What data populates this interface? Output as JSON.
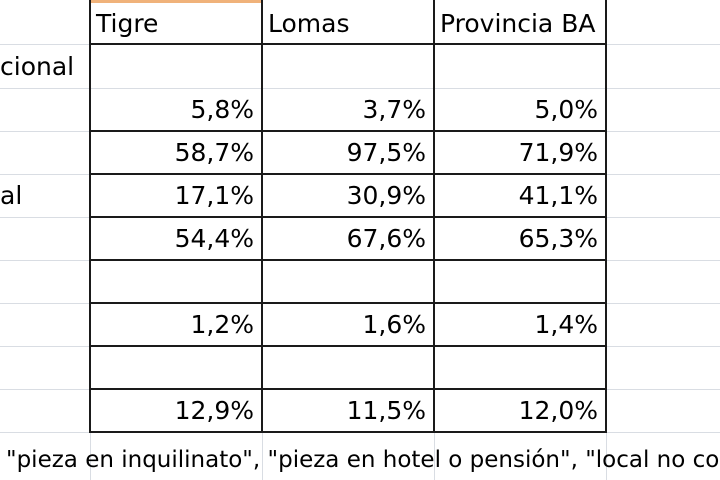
{
  "columns": [
    "Tigre",
    "Lomas",
    "Provincia BA"
  ],
  "rows": [
    {
      "label": "cional",
      "values": [
        "",
        "",
        ""
      ]
    },
    {
      "label": "",
      "values": [
        "5,8%",
        "3,7%",
        "5,0%"
      ]
    },
    {
      "label": "",
      "values": [
        "58,7%",
        "97,5%",
        "71,9%"
      ]
    },
    {
      "label": "al",
      "values": [
        "17,1%",
        "30,9%",
        "41,1%"
      ]
    },
    {
      "label": "",
      "values": [
        "54,4%",
        "67,6%",
        "65,3%"
      ]
    },
    {
      "label": "",
      "values": [
        "",
        "",
        ""
      ]
    },
    {
      "label": "",
      "values": [
        "1,2%",
        "1,6%",
        "1,4%"
      ]
    },
    {
      "label": "",
      "values": [
        "",
        "",
        ""
      ]
    },
    {
      "label": "",
      "values": [
        "12,9%",
        "11,5%",
        "12,0%"
      ]
    }
  ],
  "footnote": "\"pieza en inquilinato\", \"pieza en hotel o pensión\", \"local no construido p"
}
